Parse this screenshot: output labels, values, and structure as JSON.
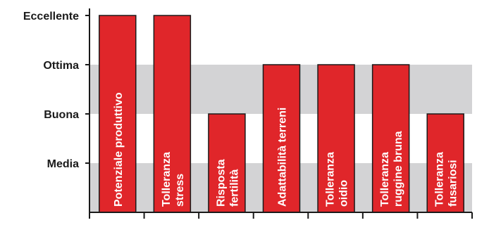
{
  "chart_data": {
    "type": "bar",
    "title": "",
    "xlabel": "",
    "ylabel": "",
    "y_levels": [
      "Media",
      "Buona",
      "Ottima",
      "Eccellente"
    ],
    "ylim": [
      0,
      4
    ],
    "categories": [
      [
        "Potenziale produttivo"
      ],
      [
        "Tolleranza",
        "stress"
      ],
      [
        "Risposta",
        "fertilità"
      ],
      [
        "Adattabilità terreni"
      ],
      [
        "Tolleranza",
        "oidio"
      ],
      [
        "Tolleranza",
        "ruggine bruna"
      ],
      [
        "Tolleranza",
        "fusariosi"
      ]
    ],
    "values": [
      4,
      4,
      2,
      3,
      3,
      3,
      2
    ],
    "grid": "alternating horizontal bands",
    "legend": "none",
    "colors": {
      "bar_fill": "#e0262a",
      "bar_stroke": "#1a1a1a",
      "band": "#d3d3d5",
      "axis": "#1a1a1a",
      "background": "#ffffff"
    }
  }
}
